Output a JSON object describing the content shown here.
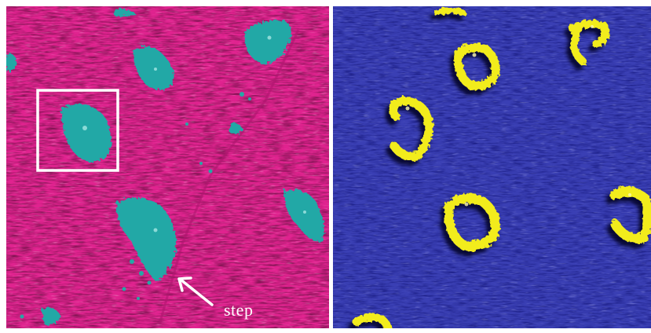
{
  "left_panel": {
    "background_color": "#e0238f",
    "island_color": "#24a8a6",
    "annotation": {
      "label": "step"
    }
  },
  "right_panel": {
    "background_color": "#3a3fb4",
    "island_color": "#f2ec1a"
  }
}
